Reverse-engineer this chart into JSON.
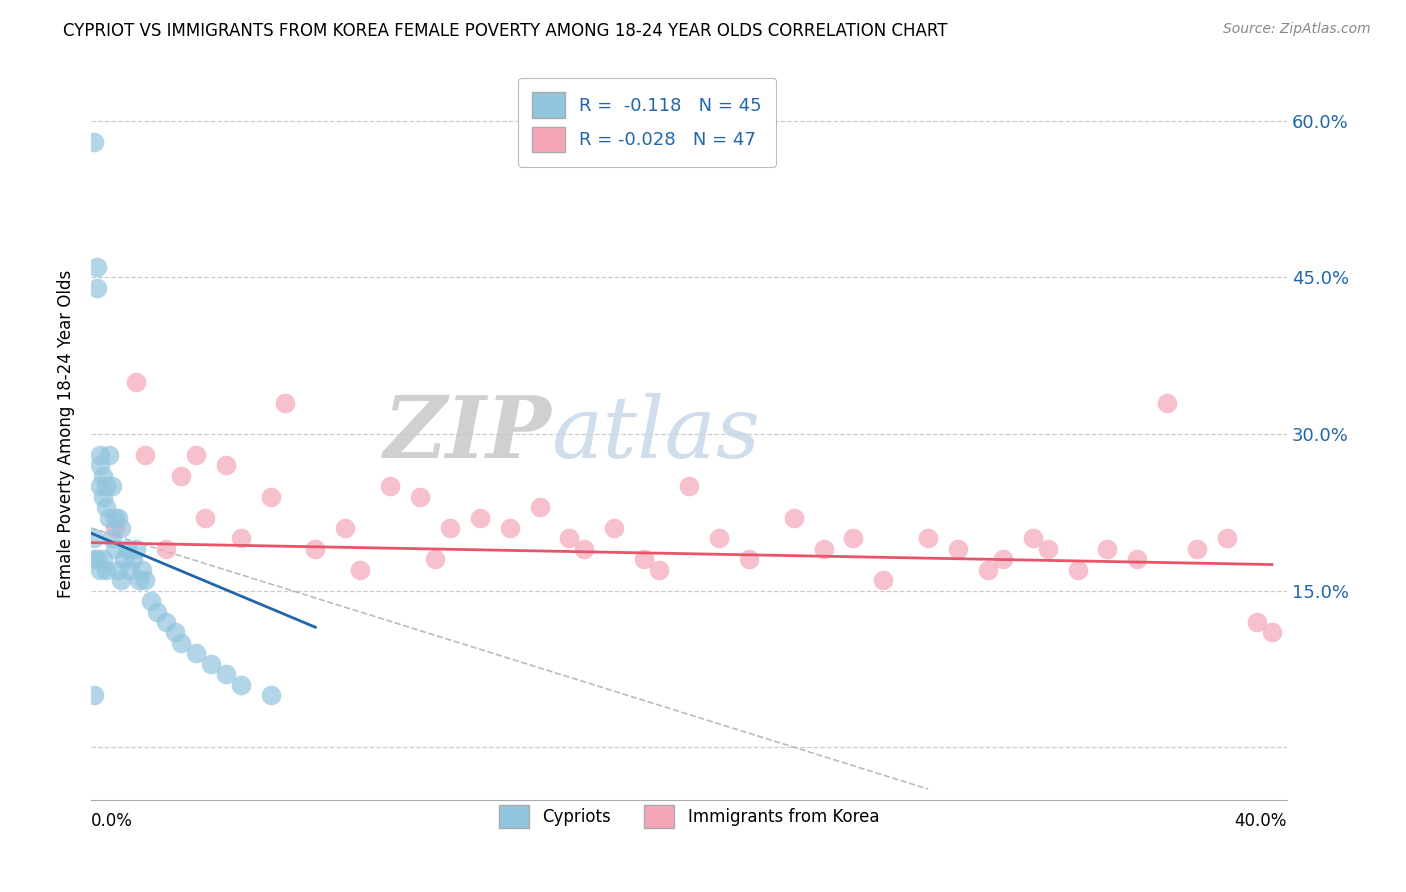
{
  "title": "CYPRIOT VS IMMIGRANTS FROM KOREA FEMALE POVERTY AMONG 18-24 YEAR OLDS CORRELATION CHART",
  "source": "Source: ZipAtlas.com",
  "ylabel": "Female Poverty Among 18-24 Year Olds",
  "y_ticks": [
    0.0,
    0.15,
    0.3,
    0.45,
    0.6
  ],
  "y_tick_labels": [
    "",
    "15.0%",
    "30.0%",
    "45.0%",
    "60.0%"
  ],
  "x_range": [
    0.0,
    0.4
  ],
  "y_range": [
    -0.05,
    0.65
  ],
  "legend_label1": "Cypriots",
  "legend_label2": "Immigrants from Korea",
  "color_blue": "#92c5de",
  "color_pink": "#f4a6b8",
  "line_color_blue": "#2166ac",
  "line_color_pink": "#e8556a",
  "line_color_gray": "#aaaaaa",
  "watermark_color": "#d8e8f0",
  "watermark_color2": "#c8d8e8",
  "cypriot_x": [
    0.001,
    0.001,
    0.001,
    0.001,
    0.002,
    0.002,
    0.002,
    0.003,
    0.003,
    0.003,
    0.003,
    0.004,
    0.004,
    0.004,
    0.005,
    0.005,
    0.005,
    0.006,
    0.006,
    0.007,
    0.007,
    0.008,
    0.008,
    0.009,
    0.009,
    0.01,
    0.01,
    0.011,
    0.012,
    0.013,
    0.014,
    0.015,
    0.016,
    0.017,
    0.018,
    0.02,
    0.022,
    0.025,
    0.028,
    0.03,
    0.035,
    0.04,
    0.045,
    0.05,
    0.06
  ],
  "cypriot_y": [
    0.58,
    0.2,
    0.18,
    0.05,
    0.46,
    0.44,
    0.18,
    0.28,
    0.27,
    0.25,
    0.17,
    0.26,
    0.24,
    0.18,
    0.25,
    0.23,
    0.17,
    0.28,
    0.22,
    0.25,
    0.2,
    0.22,
    0.19,
    0.22,
    0.17,
    0.21,
    0.16,
    0.18,
    0.19,
    0.17,
    0.18,
    0.19,
    0.16,
    0.17,
    0.16,
    0.14,
    0.13,
    0.12,
    0.11,
    0.1,
    0.09,
    0.08,
    0.07,
    0.06,
    0.05
  ],
  "korea_x": [
    0.008,
    0.015,
    0.018,
    0.025,
    0.03,
    0.035,
    0.038,
    0.045,
    0.05,
    0.06,
    0.065,
    0.075,
    0.085,
    0.09,
    0.1,
    0.11,
    0.115,
    0.12,
    0.13,
    0.14,
    0.15,
    0.16,
    0.165,
    0.175,
    0.185,
    0.19,
    0.2,
    0.21,
    0.22,
    0.235,
    0.245,
    0.255,
    0.265,
    0.28,
    0.29,
    0.3,
    0.305,
    0.315,
    0.32,
    0.33,
    0.34,
    0.35,
    0.36,
    0.37,
    0.38,
    0.39,
    0.395
  ],
  "korea_y": [
    0.21,
    0.35,
    0.28,
    0.19,
    0.26,
    0.28,
    0.22,
    0.27,
    0.2,
    0.24,
    0.33,
    0.19,
    0.21,
    0.17,
    0.25,
    0.24,
    0.18,
    0.21,
    0.22,
    0.21,
    0.23,
    0.2,
    0.19,
    0.21,
    0.18,
    0.17,
    0.25,
    0.2,
    0.18,
    0.22,
    0.19,
    0.2,
    0.16,
    0.2,
    0.19,
    0.17,
    0.18,
    0.2,
    0.19,
    0.17,
    0.19,
    0.18,
    0.33,
    0.19,
    0.2,
    0.12,
    0.11
  ],
  "blue_line_x": [
    0.0,
    0.075
  ],
  "blue_line_y": [
    0.205,
    0.115
  ],
  "pink_line_x": [
    0.0,
    0.395
  ],
  "pink_line_y": [
    0.196,
    0.175
  ],
  "gray_line_x": [
    0.0,
    0.28
  ],
  "gray_line_y": [
    0.21,
    -0.04
  ]
}
